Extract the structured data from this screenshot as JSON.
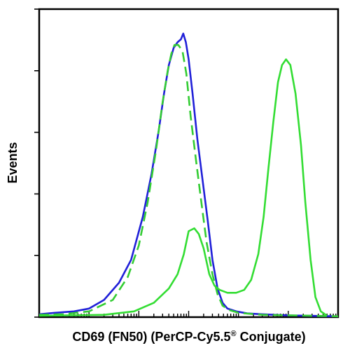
{
  "chart_data": {
    "type": "line",
    "title": "",
    "xlabel": "CD69 (FN50) (PerCP-Cy5.5",
    "xlabel_superscript": "®",
    "xlabel_suffix": " Conjugate)",
    "ylabel": "Events",
    "x_scale": "log",
    "xlim": [
      0.1,
      100000
    ],
    "ylim": [
      0,
      100
    ],
    "grid": false,
    "legend": "none",
    "series": [
      {
        "color": "#2020d8",
        "dash": "solid",
        "points": [
          [
            0.1,
            1
          ],
          [
            0.2,
            1.5
          ],
          [
            0.5,
            2
          ],
          [
            1,
            3
          ],
          [
            2,
            6
          ],
          [
            4,
            12
          ],
          [
            7,
            20
          ],
          [
            12,
            35
          ],
          [
            18,
            50
          ],
          [
            25,
            65
          ],
          [
            32,
            78
          ],
          [
            40,
            88
          ],
          [
            50,
            94
          ],
          [
            60,
            96
          ],
          [
            70,
            97
          ],
          [
            78,
            99
          ],
          [
            88,
            96
          ],
          [
            100,
            90
          ],
          [
            120,
            78
          ],
          [
            150,
            62
          ],
          [
            190,
            48
          ],
          [
            240,
            34
          ],
          [
            300,
            20
          ],
          [
            380,
            10
          ],
          [
            480,
            5
          ],
          [
            600,
            3
          ],
          [
            900,
            2
          ],
          [
            1500,
            1.3
          ],
          [
            3000,
            1
          ],
          [
            10000,
            0.6
          ],
          [
            100000,
            0.3
          ]
        ]
      },
      {
        "color": "#33cc33",
        "dash": "dashed",
        "points": [
          [
            0.1,
            0.8
          ],
          [
            0.3,
            1
          ],
          [
            1,
            2
          ],
          [
            3,
            6
          ],
          [
            6,
            14
          ],
          [
            10,
            25
          ],
          [
            15,
            40
          ],
          [
            22,
            58
          ],
          [
            30,
            75
          ],
          [
            38,
            86
          ],
          [
            45,
            92
          ],
          [
            52,
            95
          ],
          [
            62,
            95
          ],
          [
            75,
            93
          ],
          [
            90,
            85
          ],
          [
            110,
            70
          ],
          [
            140,
            55
          ],
          [
            180,
            40
          ],
          [
            230,
            26
          ],
          [
            300,
            15
          ],
          [
            380,
            8
          ],
          [
            480,
            4
          ],
          [
            650,
            2.5
          ],
          [
            1000,
            1.5
          ],
          [
            3000,
            0.8
          ],
          [
            100000,
            0.3
          ]
        ]
      },
      {
        "color": "#33dd33",
        "dash": "solid",
        "points": [
          [
            0.1,
            0.5
          ],
          [
            2,
            0.8
          ],
          [
            8,
            2
          ],
          [
            20,
            5
          ],
          [
            40,
            10
          ],
          [
            60,
            15
          ],
          [
            80,
            22
          ],
          [
            100,
            30
          ],
          [
            130,
            31
          ],
          [
            160,
            29
          ],
          [
            200,
            24
          ],
          [
            260,
            15
          ],
          [
            330,
            11
          ],
          [
            420,
            9.5
          ],
          [
            600,
            8.5
          ],
          [
            900,
            8.5
          ],
          [
            1300,
            9.5
          ],
          [
            1800,
            13
          ],
          [
            2500,
            22
          ],
          [
            3200,
            35
          ],
          [
            4000,
            52
          ],
          [
            5000,
            68
          ],
          [
            6200,
            82
          ],
          [
            7500,
            88
          ],
          [
            9000,
            90
          ],
          [
            11000,
            88
          ],
          [
            14000,
            78
          ],
          [
            18000,
            60
          ],
          [
            22000,
            40
          ],
          [
            28000,
            20
          ],
          [
            35000,
            7
          ],
          [
            45000,
            2
          ],
          [
            60000,
            0.5
          ]
        ]
      }
    ]
  }
}
